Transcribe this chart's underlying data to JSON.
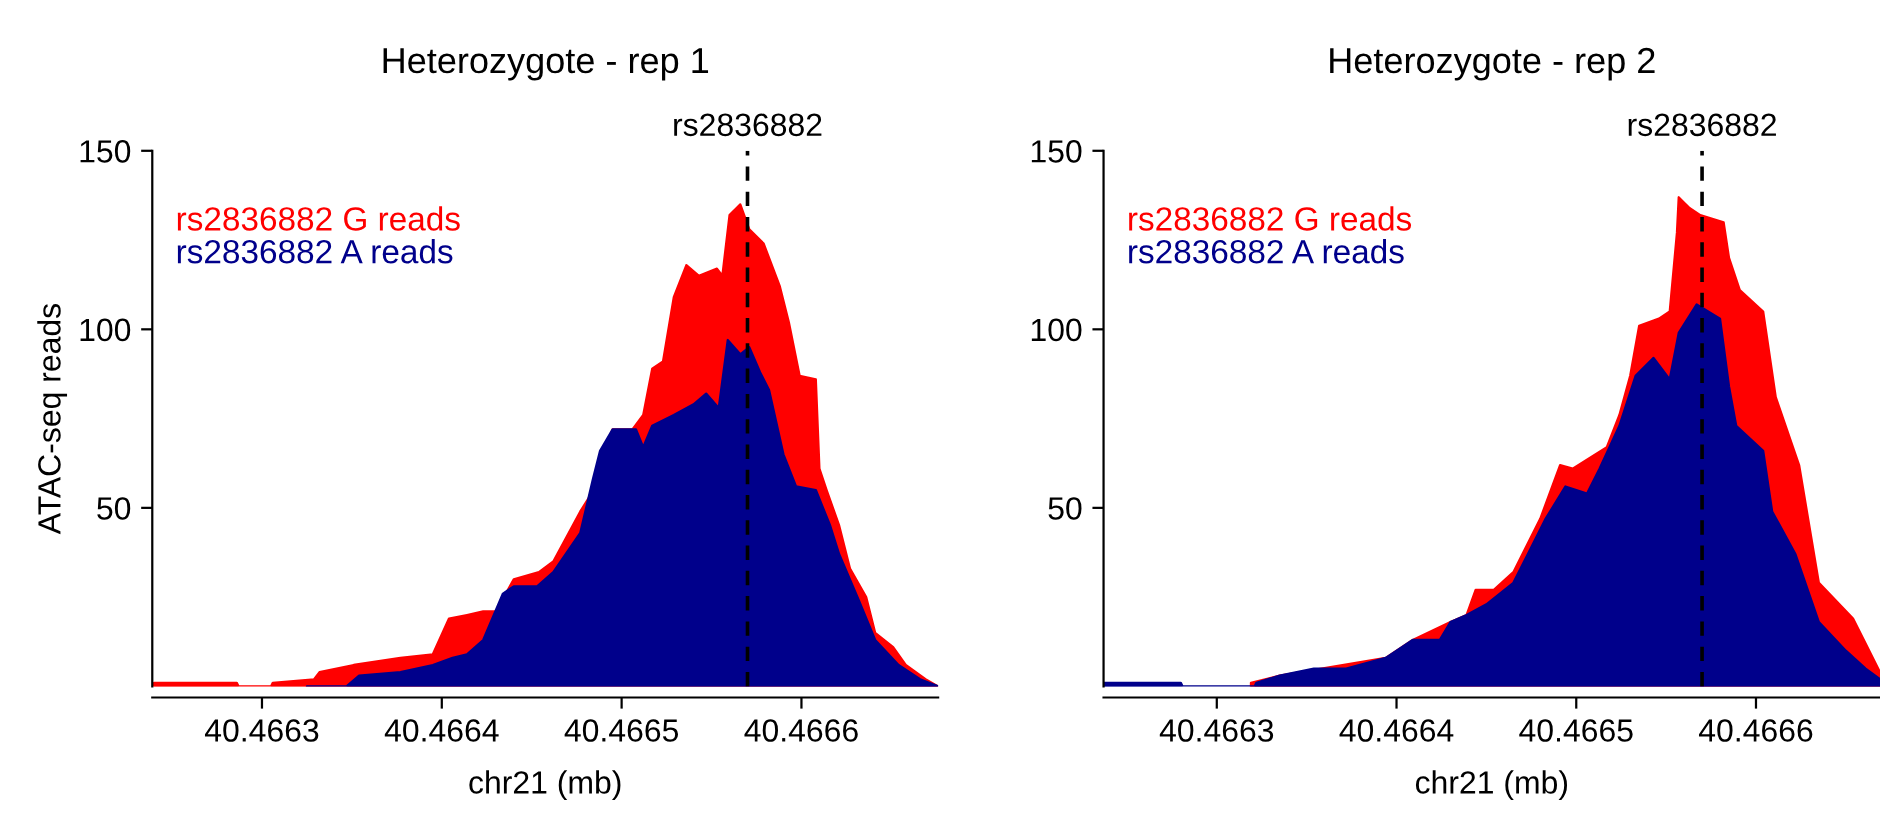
{
  "chart_data": [
    {
      "type": "area",
      "title": "Heterozygote - rep 1",
      "xlabel": "chr21 (mb)",
      "ylabel": "ATAC-seq reads",
      "xlim": [
        40.466239,
        40.466676
      ],
      "ylim": [
        0,
        150
      ],
      "xticks": [
        {
          "value": 40.4663,
          "label": "40.4663"
        },
        {
          "value": 40.4664,
          "label": "40.4664"
        },
        {
          "value": 40.4665,
          "label": "40.4665"
        },
        {
          "value": 40.4666,
          "label": "40.4666"
        }
      ],
      "yticks": [
        50,
        100,
        150
      ],
      "grid": false,
      "legend": "top left",
      "ref_lines": [
        {
          "axis": "x",
          "value": 40.46657,
          "label": "rs2836882",
          "color": "#000000",
          "line_style": "dashed"
        }
      ],
      "series": [
        {
          "name": "rs2836882 G reads",
          "color": "#ff0000",
          "x": [
            40.46624,
            40.466269,
            40.466286,
            40.466287,
            40.466305,
            40.466306,
            40.466329,
            40.466332,
            40.466351,
            40.466377,
            40.466395,
            40.466404,
            40.466414,
            40.466423,
            40.46643,
            40.46644,
            40.466454,
            40.466462,
            40.466477,
            40.466482,
            40.466488,
            40.466495,
            40.466506,
            40.466512,
            40.466517,
            40.466523,
            40.466529,
            40.466536,
            40.466543,
            40.466553,
            40.466556,
            40.46656,
            40.466566,
            40.466571,
            40.466579,
            40.466588,
            40.466593,
            40.466599,
            40.466608,
            40.46661,
            40.466614,
            40.466621,
            40.466627,
            40.466636,
            40.466641,
            40.466651,
            40.466658,
            40.466669,
            40.466676
          ],
          "values": [
            1,
            1,
            1,
            0,
            0,
            1,
            2,
            4,
            6,
            8,
            9,
            19,
            20,
            21,
            21,
            30,
            32,
            35,
            49,
            53,
            64,
            72,
            72,
            76,
            89,
            91,
            109,
            118,
            115,
            117,
            115,
            132,
            135,
            128,
            124,
            112,
            102,
            87,
            86,
            61,
            55,
            45,
            33,
            25,
            15,
            11,
            6,
            2,
            0
          ]
        },
        {
          "name": "rs2836882 A reads",
          "color": "#00008b",
          "x": [
            40.466325,
            40.466347,
            40.466354,
            40.466377,
            40.466395,
            40.466406,
            40.466414,
            40.466423,
            40.466434,
            40.46644,
            40.466453,
            40.466462,
            40.466477,
            40.466484,
            40.466488,
            40.466495,
            40.466508,
            40.466512,
            40.466517,
            40.466529,
            40.46654,
            40.466547,
            40.466554,
            40.466559,
            40.466566,
            40.466571,
            40.466577,
            40.466582,
            40.46659,
            40.466597,
            40.466608,
            40.466616,
            40.466621,
            40.466632,
            40.466641,
            40.466654,
            40.466666,
            40.466676
          ],
          "values": [
            0,
            0,
            3,
            4,
            6,
            8,
            9,
            13,
            26,
            28,
            28,
            32,
            43,
            58,
            66,
            72,
            72,
            67,
            73,
            76,
            79,
            82,
            78,
            97,
            93,
            95,
            88,
            83,
            65,
            56,
            55,
            45,
            37,
            24,
            13,
            6,
            2,
            0
          ]
        }
      ]
    },
    {
      "type": "area",
      "title": "Heterozygote - rep 2",
      "xlabel": "chr21 (mb)",
      "xlim": [
        40.466237,
        40.466669
      ],
      "ylim": [
        0,
        150
      ],
      "xticks": [
        {
          "value": 40.4663,
          "label": "40.4663"
        },
        {
          "value": 40.4664,
          "label": "40.4664"
        },
        {
          "value": 40.4665,
          "label": "40.4665"
        },
        {
          "value": 40.4666,
          "label": "40.4666"
        }
      ],
      "yticks": [
        50,
        100,
        150
      ],
      "grid": false,
      "legend": "top left",
      "ref_lines": [
        {
          "axis": "x",
          "value": 40.46657,
          "label": "rs2836882",
          "color": "#000000",
          "line_style": "dashed"
        }
      ],
      "series": [
        {
          "name": "rs2836882 G reads",
          "color": "#ff0000",
          "x": [
            40.466319,
            40.466335,
            40.466394,
            40.466409,
            40.46643,
            40.466439,
            40.466444,
            40.466454,
            40.466465,
            40.46648,
            40.466491,
            40.466498,
            40.466517,
            40.466524,
            40.46653,
            40.466535,
            40.466546,
            40.466552,
            40.466556,
            40.466557,
            40.466563,
            40.466569,
            40.466582,
            40.466585,
            40.466591,
            40.466604,
            40.466611,
            40.466624,
            40.466635,
            40.466654,
            40.466661,
            40.466669
          ],
          "values": [
            1,
            3,
            8,
            13,
            18,
            20,
            27,
            27,
            32,
            47,
            62,
            61,
            67,
            76,
            87,
            101,
            103,
            105,
            127,
            137,
            134,
            132,
            130,
            120,
            111,
            105,
            81,
            62,
            29,
            19,
            12,
            4
          ]
        },
        {
          "name": "rs2836882 A reads",
          "color": "#00008b",
          "x": [
            40.466237,
            40.46628,
            40.466281,
            40.466321,
            40.466322,
            40.466335,
            40.466354,
            40.466372,
            40.466394,
            40.466409,
            40.466424,
            40.46643,
            40.466439,
            40.46645,
            40.466465,
            40.466483,
            40.466494,
            40.466506,
            40.466513,
            40.466524,
            40.466533,
            40.466543,
            40.466552,
            40.466557,
            40.466567,
            40.46658,
            40.466585,
            40.466589,
            40.466604,
            40.466609,
            40.466622,
            40.466635,
            40.46665,
            40.466661,
            40.466669
          ],
          "values": [
            1,
            1,
            0,
            0,
            1,
            3,
            5,
            5,
            8,
            13,
            13,
            18,
            20,
            23,
            29,
            47,
            56,
            54,
            61,
            73,
            87,
            92,
            86,
            99,
            107,
            103,
            84,
            73,
            66,
            49,
            37,
            18,
            10,
            5,
            2
          ]
        }
      ]
    }
  ]
}
